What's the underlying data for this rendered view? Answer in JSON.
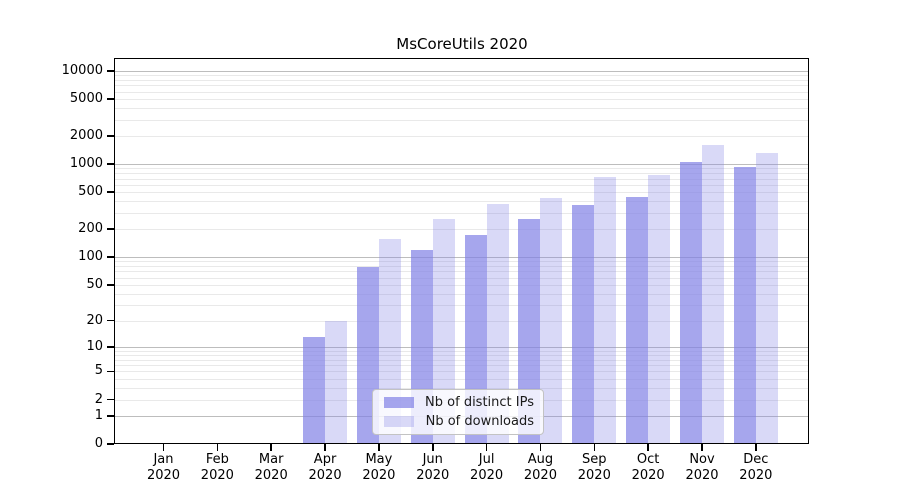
{
  "title": "MsCoreUtils 2020",
  "legend": {
    "items": [
      {
        "label": "Nb of distinct IPs",
        "color": "rgba(128,128,230,0.7)"
      },
      {
        "label": "Nb of downloads",
        "color": "rgba(128,128,230,0.3)"
      }
    ]
  },
  "y_axis": {
    "ticks": [
      {
        "label": "10000",
        "value": 10000
      },
      {
        "label": "5000",
        "value": 5000
      },
      {
        "label": "2000",
        "value": 2000
      },
      {
        "label": "1000",
        "value": 1000
      },
      {
        "label": "500",
        "value": 500
      },
      {
        "label": "200",
        "value": 200
      },
      {
        "label": "100",
        "value": 100
      },
      {
        "label": "50",
        "value": 50
      },
      {
        "label": "20",
        "value": 20
      },
      {
        "label": "10",
        "value": 10
      },
      {
        "label": "5",
        "value": 5
      },
      {
        "label": "2",
        "value": 2
      },
      {
        "label": "1",
        "value": 1
      },
      {
        "label": "0",
        "value": 0
      }
    ]
  },
  "x_axis": {
    "months": [
      {
        "month": "Jan",
        "year": "2020"
      },
      {
        "month": "Feb",
        "year": "2020"
      },
      {
        "month": "Mar",
        "year": "2020"
      },
      {
        "month": "Apr",
        "year": "2020"
      },
      {
        "month": "May",
        "year": "2020"
      },
      {
        "month": "Jun",
        "year": "2020"
      },
      {
        "month": "Jul",
        "year": "2020"
      },
      {
        "month": "Aug",
        "year": "2020"
      },
      {
        "month": "Sep",
        "year": "2020"
      },
      {
        "month": "Oct",
        "year": "2020"
      },
      {
        "month": "Nov",
        "year": "2020"
      },
      {
        "month": "Dec",
        "year": "2020"
      }
    ]
  },
  "chart_data": {
    "type": "bar",
    "title": "MsCoreUtils 2020",
    "y_scale": "log10(value+1)",
    "ylim_labeled": [
      0,
      10000
    ],
    "grid": "major decades dark gray, log minors light gray",
    "legend_position": "lower center inside plot",
    "categories": [
      "Jan 2020",
      "Feb 2020",
      "Mar 2020",
      "Apr 2020",
      "May 2020",
      "Jun 2020",
      "Jul 2020",
      "Aug 2020",
      "Sep 2020",
      "Oct 2020",
      "Nov 2020",
      "Dec 2020"
    ],
    "series": [
      {
        "name": "Nb of distinct IPs",
        "color_hex": "#8080e6",
        "alpha": 0.7,
        "values": [
          0,
          0,
          0,
          13,
          78,
          118,
          173,
          255,
          365,
          440,
          1060,
          930
        ]
      },
      {
        "name": "Nb of downloads",
        "color_hex": "#8080e6",
        "alpha": 0.3,
        "values": [
          0,
          0,
          0,
          20,
          155,
          255,
          370,
          435,
          720,
          775,
          1600,
          1320
        ]
      }
    ]
  },
  "colors": {
    "bar_dark": "rgba(128,128,230,0.7)",
    "bar_light": "rgba(128,128,230,0.3)",
    "grid_major": "#bdbdbd",
    "grid_minor": "#e9e9e9",
    "axis": "#000000",
    "background": "#ffffff"
  }
}
